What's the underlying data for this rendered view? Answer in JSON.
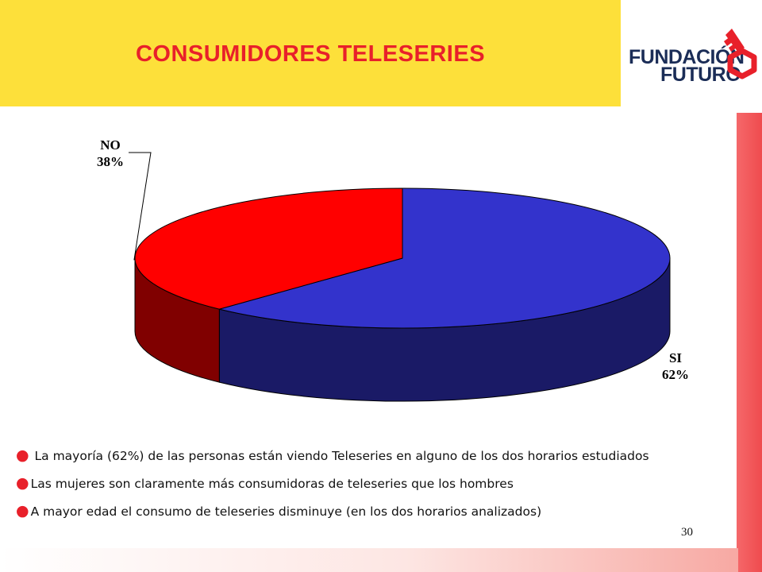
{
  "header": {
    "title": "CONSUMIDORES  TELESERIES"
  },
  "logo": {
    "line1": "FUNDACIÓN",
    "line2": "FUTURO"
  },
  "chart_data": {
    "type": "pie",
    "slices": [
      {
        "name": "SI",
        "value": 62,
        "label": "62%",
        "color": "#3333cc",
        "side_color": "#1a1a66"
      },
      {
        "name": "NO",
        "value": 38,
        "label": "38%",
        "color": "#ff0000",
        "side_color": "#800000"
      }
    ],
    "three_d": true,
    "legend": "none"
  },
  "bullets": [
    " La mayoría (62%) de las personas están viendo Teleseries en alguno de los dos horarios estudiados",
    "Las mujeres son claramente más consumidoras de teleseries que los hombres",
    "A mayor edad el consumo de teleseries disminuye (en los dos horarios analizados)"
  ],
  "footer": {
    "page_number": "30"
  },
  "colors": {
    "title_bar": "#fde03a",
    "title_text": "#e8202a",
    "logo_text": "#1b2d57",
    "logo_accent": "#e8202a",
    "stripe": "#ef4b4e"
  }
}
